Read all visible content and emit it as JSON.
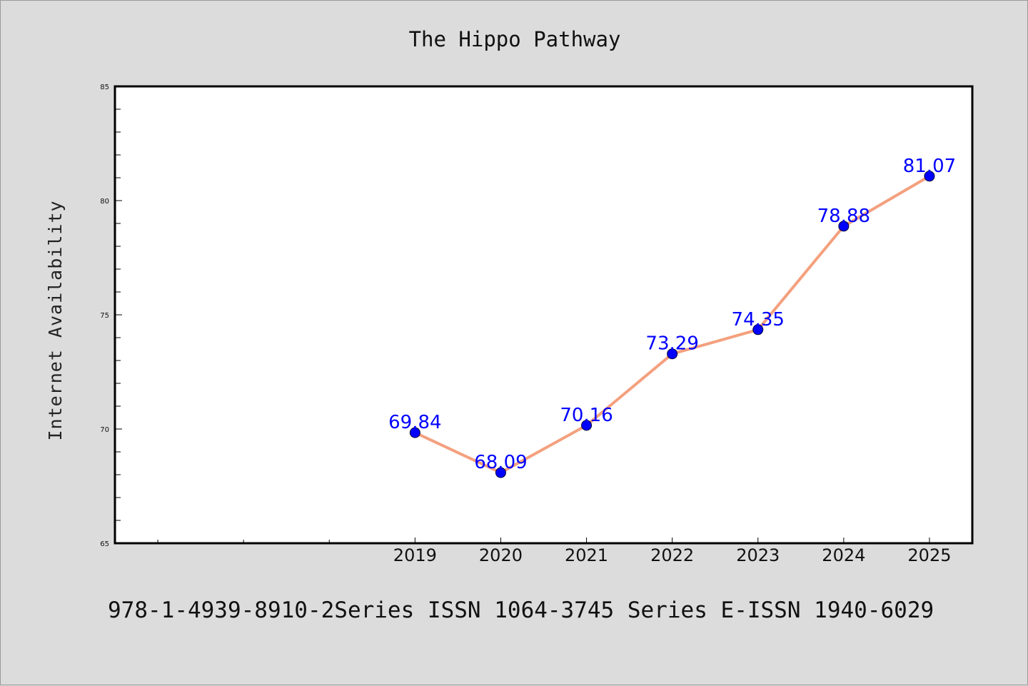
{
  "chart_data": {
    "type": "line",
    "title": "The Hippo Pathway",
    "ylabel": "Internet Availability",
    "xlabel": "",
    "categories": [
      "2019",
      "2020",
      "2021",
      "2022",
      "2023",
      "2024",
      "2025"
    ],
    "series": [
      {
        "values": [
          69.84,
          68.09,
          70.16,
          73.29,
          74.35,
          78.88,
          81.07
        ]
      }
    ],
    "data_labels": [
      "69.84",
      "68.09",
      "70.16",
      "73.29",
      "74.35",
      "78.88",
      "81.07"
    ],
    "ylim": [
      65,
      85
    ],
    "yticks": [
      65,
      70,
      75,
      80,
      85
    ],
    "ytick_labels": [
      "65",
      "70",
      "75",
      "80",
      "85"
    ],
    "x_slot_count": 10,
    "grid": false,
    "line_color": "#f4a07e",
    "marker_color": "#0000ff",
    "label_color": "#0000ff"
  },
  "footer": {
    "text": "978-1-4939-8910-2Series ISSN 1064-3745 Series E-ISSN 1940-6029"
  }
}
